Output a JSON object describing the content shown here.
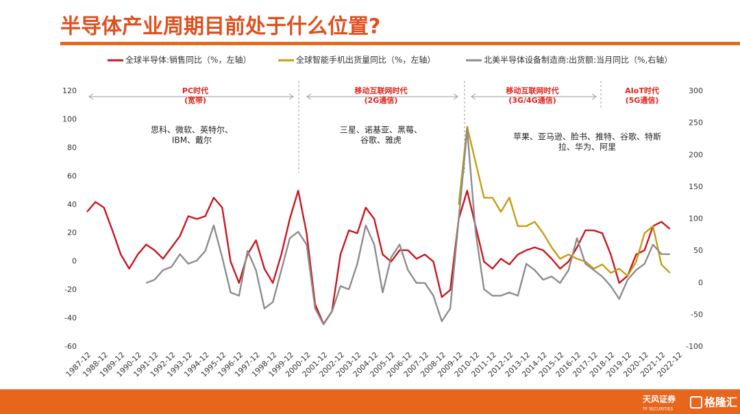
{
  "title": "半导体产业周期目前处于什么位置?",
  "footer": {
    "brand": "天风证券",
    "brand_en": "TF SECURITIES",
    "source": "格隆汇"
  },
  "chart_data": {
    "type": "line",
    "categories": [
      "1987-12",
      null,
      "1988-12",
      null,
      "1989-12",
      null,
      "1990-12",
      null,
      "1991-12",
      null,
      "1992-12",
      null,
      "1993-12",
      null,
      "1994-12",
      null,
      "1995-12",
      null,
      "1996-12",
      null,
      "1997-12",
      null,
      "1998-12",
      null,
      "1999-12",
      null,
      "2000-12",
      null,
      "2001-12",
      null,
      "2002-12",
      null,
      "2003-12",
      null,
      "2004-12",
      null,
      "2005-12",
      null,
      "2006-12",
      null,
      "2007-12",
      null,
      "2008-12",
      null,
      "2009-12",
      null,
      "2010-12",
      null,
      "2011-12",
      null,
      "2012-12",
      null,
      "2013-12",
      null,
      "2014-12",
      null,
      "2015-12",
      null,
      "2016-12",
      null,
      "2017-12",
      null,
      "2018-12",
      null,
      "2019-12",
      null,
      "2020-12",
      null,
      "2021-12",
      null,
      "2022-12"
    ],
    "series": [
      {
        "name": "全球半导体:销售同比（%，左轴）",
        "color": "#c8161d",
        "values": [
          35,
          42,
          38,
          22,
          5,
          -5,
          5,
          12,
          8,
          2,
          10,
          18,
          32,
          30,
          32,
          45,
          38,
          0,
          -15,
          5,
          15,
          -5,
          -15,
          5,
          30,
          50,
          20,
          -30,
          -44,
          -35,
          5,
          22,
          20,
          38,
          30,
          5,
          0,
          8,
          8,
          2,
          5,
          0,
          -25,
          -20,
          30,
          50,
          25,
          0,
          -5,
          2,
          -2,
          5,
          8,
          10,
          8,
          2,
          -5,
          0,
          10,
          22,
          22,
          20,
          5,
          -15,
          -10,
          5,
          8,
          25,
          28,
          23,
          null
        ]
      },
      {
        "name": "全球智能手机出货量同比（%，左轴）",
        "color": "#c89a12",
        "values": [
          null,
          null,
          null,
          null,
          null,
          null,
          null,
          null,
          null,
          null,
          null,
          null,
          null,
          null,
          null,
          null,
          null,
          null,
          null,
          null,
          null,
          null,
          null,
          null,
          null,
          null,
          null,
          null,
          null,
          null,
          null,
          null,
          null,
          null,
          null,
          null,
          null,
          null,
          null,
          null,
          null,
          null,
          null,
          null,
          40,
          95,
          70,
          45,
          45,
          35,
          45,
          25,
          25,
          28,
          20,
          10,
          2,
          5,
          2,
          0,
          -5,
          -2,
          -8,
          -5,
          -10,
          0,
          20,
          25,
          -2,
          -8,
          null
        ]
      },
      {
        "name": "北美半导体设备制造商:出货额:当月同比（%,右轴）",
        "color": "#8c8c8c",
        "axis": "y2",
        "values": [
          null,
          null,
          null,
          null,
          null,
          null,
          null,
          0,
          5,
          20,
          25,
          45,
          30,
          35,
          50,
          90,
          40,
          -15,
          -20,
          50,
          20,
          -40,
          -30,
          20,
          70,
          80,
          60,
          -40,
          -65,
          -45,
          -5,
          -10,
          30,
          90,
          60,
          -15,
          40,
          60,
          20,
          0,
          0,
          -20,
          -60,
          -40,
          100,
          240,
          80,
          -10,
          -20,
          -20,
          -15,
          -20,
          30,
          20,
          5,
          10,
          0,
          20,
          70,
          30,
          20,
          10,
          -5,
          -25,
          5,
          20,
          30,
          60,
          45,
          45,
          null
        ]
      }
    ],
    "ylim": [
      -60,
      120
    ],
    "yticks": [
      -60,
      -40,
      -20,
      0,
      20,
      40,
      60,
      80,
      100,
      120
    ],
    "y2lim": [
      -100,
      300
    ],
    "y2ticks": [
      -100,
      -50,
      0,
      50,
      100,
      150,
      200,
      250,
      300
    ],
    "grid": false,
    "eras": [
      {
        "name": [
          "PC时代",
          "(宽带)"
        ],
        "companies": [
          "思科、微软、英特尔、",
          "IBM、戴尔"
        ]
      },
      {
        "name": [
          "移动互联网时代",
          "(2G通信)"
        ],
        "companies": [
          "三星、诺基亚、黑莓、",
          "谷歌、雅虎"
        ]
      },
      {
        "name": [
          "移动互联网时代",
          "(3G/4G通信)"
        ],
        "companies": [
          "苹果、亚马逊、脸书、推特、谷歌、特斯",
          "拉、华为、阿里"
        ]
      },
      {
        "name": [
          "AIoT时代",
          "(5G通信)"
        ],
        "companies": []
      }
    ]
  }
}
